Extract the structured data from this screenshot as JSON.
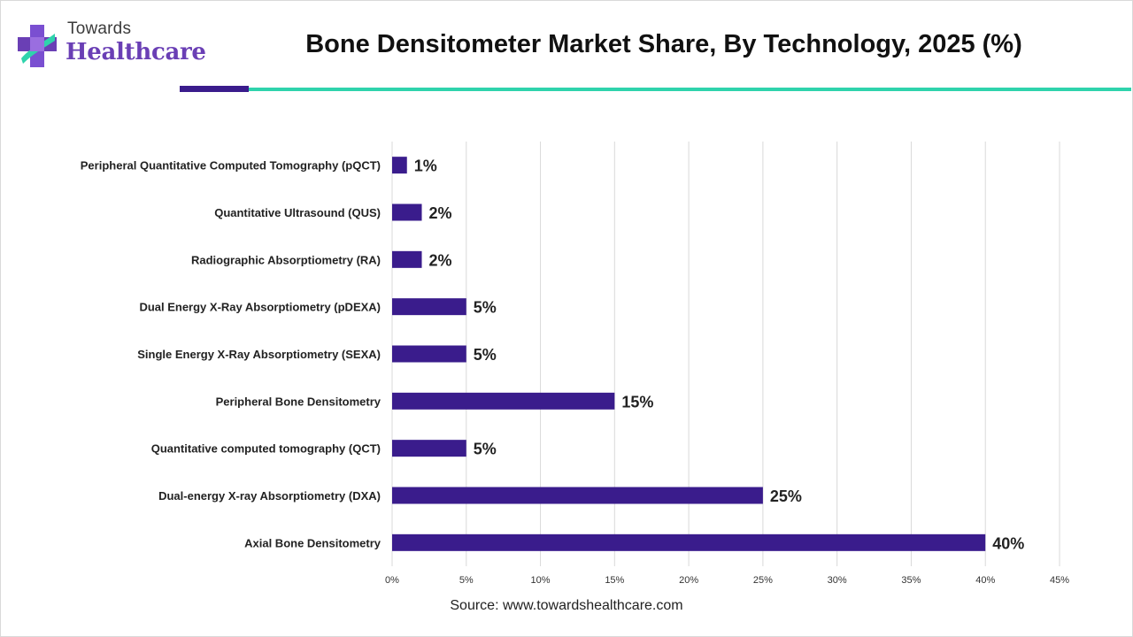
{
  "brand": {
    "line1": "Towards",
    "line2": "Healthcare"
  },
  "title": "Bone Densitometer Market Share, By Technology, 2025 (%)",
  "source": "Source: www.towardshealthcare.com",
  "colors": {
    "bar": "#3a1c8c",
    "accent": "#2fd3ac",
    "brand": "#6a3fb5",
    "grid": "#d9d9d9"
  },
  "chart_data": {
    "type": "bar",
    "orientation": "horizontal",
    "categories": [
      "Peripheral Quantitative Computed Tomography (pQCT)",
      "Quantitative Ultrasound (QUS)",
      "Radiographic Absorptiometry (RA)",
      "Dual Energy X-Ray Absorptiometry (pDEXA)",
      "Single Energy X-Ray Absorptiometry (SEXA)",
      "Peripheral Bone Densitometry",
      "Quantitative computed tomography (QCT)",
      "Dual-energy X-ray Absorptiometry (DXA)",
      "Axial Bone Densitometry"
    ],
    "values": [
      1,
      2,
      2,
      5,
      5,
      15,
      5,
      25,
      40
    ],
    "value_labels": [
      "1%",
      "2%",
      "2%",
      "5%",
      "5%",
      "15%",
      "5%",
      "25%",
      "40%"
    ],
    "xlim": [
      0,
      45
    ],
    "xticks": [
      0,
      5,
      10,
      15,
      20,
      25,
      30,
      35,
      40,
      45
    ],
    "xtick_labels": [
      "0%",
      "5%",
      "10%",
      "15%",
      "20%",
      "25%",
      "30%",
      "35%",
      "40%",
      "45%"
    ],
    "grid": "vertical",
    "legend": "none"
  }
}
